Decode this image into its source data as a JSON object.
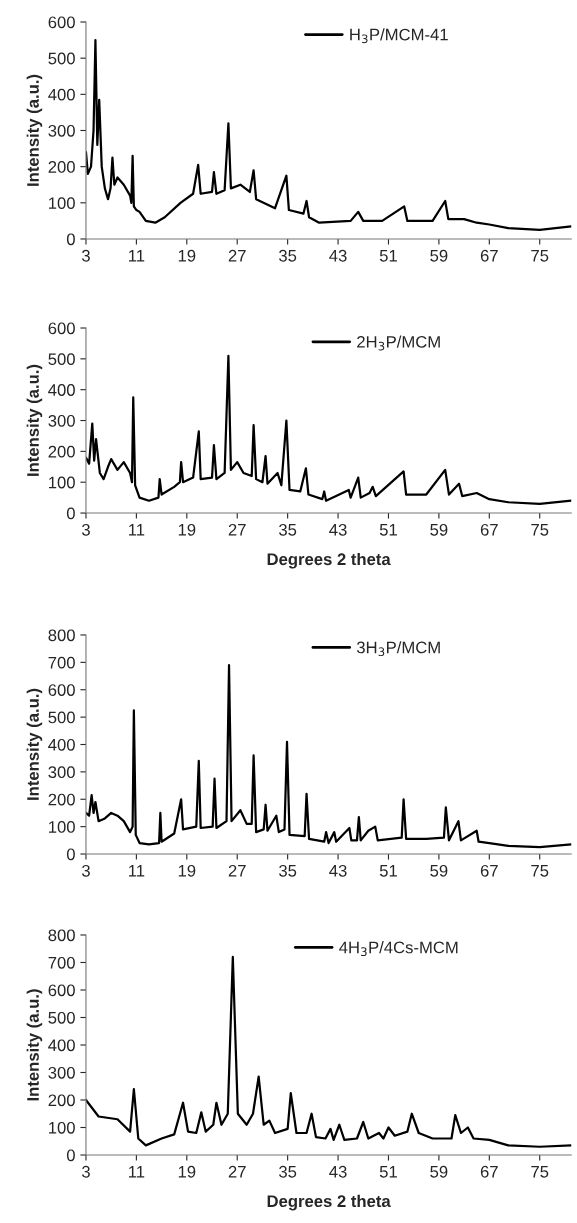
{
  "chart_data": [
    {
      "type": "line",
      "ylabel": "Intensity (a.u.)",
      "legend": "top",
      "xlim": [
        3,
        80
      ],
      "xticks": [
        3,
        11,
        19,
        27,
        35,
        43,
        51,
        59,
        67,
        75
      ],
      "ylim": [
        0,
        600
      ],
      "yticks": [
        0,
        100,
        200,
        300,
        400,
        500,
        600
      ],
      "x": [
        3,
        3.3,
        3.8,
        4.2,
        4.5,
        4.8,
        5.1,
        5.5,
        6.0,
        6.5,
        6.9,
        7.2,
        7.5,
        8,
        9,
        10,
        10.2,
        10.4,
        10.6,
        11,
        11.5,
        12.5,
        14,
        15.5,
        18,
        20,
        20.8,
        21.2,
        23,
        23.3,
        23.7,
        25,
        25.6,
        26,
        27.5,
        29,
        29.6,
        30,
        33,
        34.8,
        35.2,
        37.5,
        38.0,
        38.4,
        40,
        45,
        46.2,
        47,
        50,
        53.5,
        54,
        58,
        60.0,
        60.5,
        63,
        65,
        67,
        70,
        75,
        80
      ],
      "series": [
        {
          "name": "H$_{3}$P/MCM-41",
          "color": "#000000",
          "values": [
            240,
            180,
            200,
            300,
            550,
            260,
            385,
            200,
            140,
            110,
            140,
            225,
            150,
            170,
            150,
            120,
            100,
            230,
            90,
            80,
            75,
            50,
            45,
            60,
            100,
            125,
            205,
            125,
            130,
            185,
            125,
            135,
            320,
            140,
            150,
            130,
            190,
            110,
            85,
            175,
            80,
            70,
            105,
            60,
            45,
            50,
            75,
            50,
            50,
            90,
            50,
            50,
            105,
            55,
            55,
            45,
            40,
            30,
            25,
            35
          ]
        }
      ]
    },
    {
      "type": "line",
      "ylabel": "Intensity (a.u.)",
      "xlabel": "Degrees 2 theta",
      "legend": "top",
      "xlim": [
        3,
        80
      ],
      "xticks": [
        3,
        11,
        19,
        27,
        35,
        43,
        51,
        59,
        67,
        75
      ],
      "ylim": [
        0,
        600
      ],
      "yticks": [
        0,
        100,
        200,
        300,
        400,
        500,
        600
      ],
      "x": [
        3,
        3.5,
        4.0,
        4.3,
        4.6,
        5.2,
        5.8,
        6.5,
        7,
        8,
        9,
        10,
        10.3,
        10.5,
        10.8,
        11.5,
        13,
        14.5,
        14.7,
        15.0,
        17,
        17.9,
        18.1,
        18.4,
        20,
        20.9,
        21.2,
        23,
        23.3,
        23.7,
        25,
        25.6,
        26,
        27,
        28,
        29.3,
        29.6,
        30,
        31,
        31.5,
        31.8,
        33.4,
        34,
        34.8,
        35.3,
        37,
        37.9,
        38.3,
        40.5,
        40.8,
        41.1,
        44.7,
        45,
        46.2,
        46.6,
        48,
        48.5,
        49,
        53.4,
        53.8,
        57,
        60.0,
        60.6,
        62.2,
        62.7,
        65,
        67,
        70,
        75,
        80
      ],
      "series": [
        {
          "name": "2H$_{3}$P/MCM",
          "color": "#000000",
          "values": [
            180,
            160,
            290,
            170,
            240,
            130,
            110,
            150,
            175,
            140,
            165,
            130,
            100,
            375,
            90,
            50,
            40,
            50,
            110,
            60,
            85,
            100,
            165,
            100,
            115,
            265,
            110,
            115,
            220,
            110,
            130,
            510,
            140,
            165,
            130,
            120,
            285,
            110,
            100,
            185,
            95,
            130,
            90,
            300,
            75,
            70,
            145,
            60,
            45,
            70,
            40,
            75,
            50,
            115,
            50,
            65,
            85,
            55,
            135,
            60,
            60,
            140,
            60,
            95,
            55,
            65,
            45,
            35,
            30,
            40
          ]
        }
      ]
    },
    {
      "type": "line",
      "ylabel": "Intensity (a.u.)",
      "legend": "top",
      "xlim": [
        3,
        80
      ],
      "xticks": [
        3,
        11,
        19,
        27,
        35,
        43,
        51,
        59,
        67,
        75
      ],
      "ylim": [
        0,
        800
      ],
      "yticks": [
        0,
        100,
        200,
        300,
        400,
        500,
        600,
        700,
        800
      ],
      "x": [
        3,
        3.5,
        3.9,
        4.2,
        4.5,
        5,
        6,
        7,
        8,
        9,
        10,
        10.4,
        10.6,
        10.9,
        11.5,
        13,
        14.6,
        14.8,
        15.0,
        17,
        18.1,
        18.4,
        20.5,
        20.9,
        21.2,
        23.1,
        23.4,
        23.7,
        25.3,
        25.7,
        26.1,
        27.5,
        28.5,
        29.3,
        29.6,
        30,
        31.2,
        31.5,
        31.8,
        33.2,
        33.6,
        34.5,
        34.9,
        35.3,
        37.7,
        38.0,
        38.4,
        40.8,
        41.1,
        41.5,
        42.4,
        42.7,
        44.8,
        45.1,
        46.0,
        46.3,
        46.6,
        47.8,
        48.9,
        49.3,
        53.1,
        53.4,
        53.8,
        57,
        59.8,
        60.1,
        60.6,
        62.1,
        62.5,
        65,
        65.3,
        67,
        70,
        75,
        80
      ],
      "series": [
        {
          "name": "3H$_{3}$P/MCM",
          "color": "#000000",
          "values": [
            150,
            140,
            215,
            150,
            190,
            120,
            130,
            150,
            140,
            120,
            80,
            100,
            525,
            70,
            40,
            35,
            40,
            150,
            45,
            75,
            200,
            90,
            100,
            340,
            95,
            100,
            275,
            95,
            120,
            690,
            120,
            160,
            110,
            110,
            360,
            80,
            90,
            180,
            85,
            140,
            80,
            90,
            410,
            70,
            65,
            220,
            55,
            45,
            80,
            40,
            80,
            45,
            95,
            50,
            50,
            135,
            50,
            85,
            100,
            50,
            60,
            200,
            55,
            55,
            60,
            170,
            50,
            120,
            50,
            85,
            45,
            40,
            30,
            25,
            35
          ]
        }
      ]
    },
    {
      "type": "line",
      "ylabel": "Intensity (a.u.)",
      "xlabel": "Degrees 2 theta",
      "legend": "top",
      "xlim": [
        3,
        80
      ],
      "xticks": [
        3,
        11,
        19,
        27,
        35,
        43,
        51,
        59,
        67,
        75
      ],
      "ylim": [
        0,
        800
      ],
      "yticks": [
        0,
        100,
        200,
        300,
        400,
        500,
        600,
        700,
        800
      ],
      "x": [
        3,
        5,
        8,
        10,
        10.6,
        11.3,
        12.5,
        15,
        17,
        18.4,
        19.2,
        20.5,
        21.3,
        22,
        23.2,
        23.7,
        24.5,
        25.5,
        26.3,
        27.1,
        28.5,
        29.5,
        30.4,
        31.2,
        32.1,
        33,
        35,
        35.5,
        36.4,
        38,
        38.8,
        39.5,
        41,
        41.8,
        42.3,
        43.2,
        44,
        46,
        47,
        47.8,
        49.5,
        50.2,
        51,
        52,
        54,
        54.7,
        55.8,
        58,
        61,
        61.6,
        62.5,
        63.6,
        64.5,
        67,
        70,
        75,
        80
      ],
      "series": [
        {
          "name": "4H$_{3}$P/4Cs-MCM",
          "color": "#000000",
          "values": [
            200,
            140,
            130,
            85,
            240,
            60,
            35,
            60,
            75,
            190,
            85,
            80,
            155,
            85,
            110,
            190,
            110,
            150,
            720,
            150,
            110,
            150,
            285,
            110,
            125,
            80,
            95,
            225,
            80,
            80,
            150,
            65,
            60,
            95,
            55,
            110,
            55,
            60,
            120,
            60,
            80,
            60,
            100,
            70,
            85,
            150,
            80,
            60,
            60,
            145,
            80,
            100,
            60,
            55,
            35,
            30,
            35
          ]
        }
      ]
    }
  ]
}
